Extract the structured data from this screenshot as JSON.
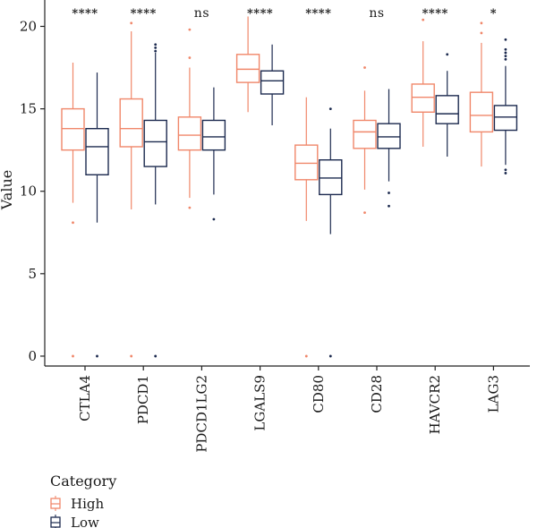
{
  "chart_data": {
    "type": "box",
    "title": "",
    "xlabel": "",
    "ylabel": "Value",
    "ylim": [
      -0.6,
      21.6
    ],
    "yticks": [
      0,
      5,
      10,
      15,
      20
    ],
    "grid": false,
    "categories": [
      "CTLA4",
      "PDCD1",
      "PDCD1LG2",
      "LGALS9",
      "CD80",
      "CD28",
      "HAVCR2",
      "LAG3"
    ],
    "significance": [
      "****",
      "****",
      "ns",
      "****",
      "****",
      "ns",
      "****",
      "*"
    ],
    "legend": {
      "title": "Category",
      "placement": "bottom-left"
    },
    "series": [
      {
        "name": "High",
        "color": "#f0876a",
        "boxes": [
          {
            "whisker_low": 9.3,
            "q1": 12.5,
            "median": 13.8,
            "q3": 15.0,
            "whisker_high": 17.8,
            "outliers": [
              8.1,
              0.0
            ]
          },
          {
            "whisker_low": 8.9,
            "q1": 12.7,
            "median": 13.8,
            "q3": 15.6,
            "whisker_high": 19.7,
            "outliers": [
              20.2,
              0.0
            ]
          },
          {
            "whisker_low": 9.6,
            "q1": 12.5,
            "median": 13.4,
            "q3": 14.5,
            "whisker_high": 17.5,
            "outliers": [
              19.8,
              18.1,
              9.0
            ]
          },
          {
            "whisker_low": 14.8,
            "q1": 16.6,
            "median": 17.4,
            "q3": 18.3,
            "whisker_high": 20.6,
            "outliers": []
          },
          {
            "whisker_low": 8.2,
            "q1": 10.7,
            "median": 11.7,
            "q3": 12.8,
            "whisker_high": 15.7,
            "outliers": [
              0.0
            ]
          },
          {
            "whisker_low": 10.1,
            "q1": 12.6,
            "median": 13.6,
            "q3": 14.3,
            "whisker_high": 16.1,
            "outliers": [
              17.5,
              8.7
            ]
          },
          {
            "whisker_low": 12.7,
            "q1": 14.8,
            "median": 15.7,
            "q3": 16.5,
            "whisker_high": 19.1,
            "outliers": [
              20.4
            ]
          },
          {
            "whisker_low": 11.5,
            "q1": 13.6,
            "median": 14.6,
            "q3": 16.0,
            "whisker_high": 19.0,
            "outliers": [
              20.2,
              19.6
            ]
          }
        ]
      },
      {
        "name": "Low",
        "color": "#1c2a4f",
        "boxes": [
          {
            "whisker_low": 8.1,
            "q1": 11.0,
            "median": 12.7,
            "q3": 13.8,
            "whisker_high": 17.2,
            "outliers": [
              0.0
            ]
          },
          {
            "whisker_low": 9.2,
            "q1": 11.5,
            "median": 13.0,
            "q3": 14.3,
            "whisker_high": 18.4,
            "outliers": [
              18.9,
              18.7,
              18.5,
              0.0
            ]
          },
          {
            "whisker_low": 9.8,
            "q1": 12.5,
            "median": 13.3,
            "q3": 14.3,
            "whisker_high": 16.3,
            "outliers": [
              8.3
            ]
          },
          {
            "whisker_low": 14.0,
            "q1": 15.9,
            "median": 16.7,
            "q3": 17.3,
            "whisker_high": 18.9,
            "outliers": []
          },
          {
            "whisker_low": 7.4,
            "q1": 9.8,
            "median": 10.8,
            "q3": 11.9,
            "whisker_high": 13.8,
            "outliers": [
              15.0,
              0.0
            ]
          },
          {
            "whisker_low": 10.6,
            "q1": 12.6,
            "median": 13.3,
            "q3": 14.1,
            "whisker_high": 16.2,
            "outliers": [
              9.9,
              9.1
            ]
          },
          {
            "whisker_low": 12.1,
            "q1": 14.1,
            "median": 14.7,
            "q3": 15.8,
            "whisker_high": 17.3,
            "outliers": [
              18.3
            ]
          },
          {
            "whisker_low": 11.6,
            "q1": 13.7,
            "median": 14.5,
            "q3": 15.2,
            "whisker_high": 17.6,
            "outliers": [
              19.2,
              18.6,
              18.4,
              18.2,
              18.0,
              11.3,
              11.1
            ]
          }
        ]
      }
    ]
  }
}
